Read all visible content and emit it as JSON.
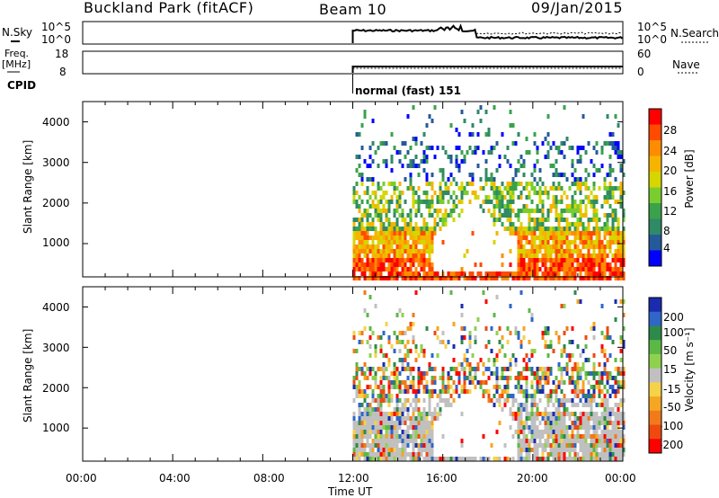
{
  "header": {
    "site": "Buckland Park (fitACF)",
    "beam": "Beam 10",
    "date": "09/Jan/2015"
  },
  "top_panels": {
    "nsky_label": "N.Sky",
    "nsearch_label": "N.Search",
    "left_ticks": [
      "10^5",
      "10^0"
    ],
    "right_ticks": [
      "10^5",
      "10^0"
    ],
    "freq_label_line1": "Freq.",
    "freq_label_line2": "[MHz]",
    "freq_ticks": [
      "18",
      "8"
    ],
    "nave_label": "Nave",
    "nave_ticks": [
      "60",
      "0"
    ],
    "cpid_label": "CPID",
    "cpid_text": "normal (fast) 151"
  },
  "chart_data": [
    {
      "type": "heatmap",
      "title": "",
      "ylabel": "Slant Range [km]",
      "xlabel": "",
      "y_ticks": [
        "4000",
        "3000",
        "2000",
        "1000"
      ],
      "colorbar_label": "Power [dB]",
      "colorbar_ticks": [
        "28",
        "24",
        "20",
        "16",
        "12",
        "8",
        "4"
      ],
      "colorbar_colors": [
        "#ff0000",
        "#ff4a00",
        "#ff8c00",
        "#f6b400",
        "#d6d600",
        "#7acd2f",
        "#3aa24a",
        "#2f8a66",
        "#255a9a",
        "#0000ff"
      ],
      "ylim": [
        180,
        4500
      ],
      "xlim_hours": [
        0,
        24
      ],
      "data_start_hour": 12
    },
    {
      "type": "heatmap",
      "title": "",
      "ylabel": "Slant Range [km]",
      "xlabel": "Time UT",
      "y_ticks": [
        "4000",
        "3000",
        "2000",
        "1000"
      ],
      "x_ticks": [
        "00:00",
        "04:00",
        "08:00",
        "12:00",
        "16:00",
        "20:00",
        "00:00"
      ],
      "colorbar_label": "Velocity [m s⁻¹]",
      "colorbar_ticks": [
        "200",
        "100",
        "50",
        "15",
        "-15",
        "-50",
        "-100",
        "-200"
      ],
      "colorbar_colors": [
        "#1a2bb0",
        "#2f66c8",
        "#2d8a4a",
        "#5cb845",
        "#8fd14f",
        "#c0c0c0",
        "#f5d24a",
        "#f5a623",
        "#f27a1a",
        "#ee4a10",
        "#ff0000"
      ],
      "ylim": [
        180,
        4500
      ],
      "xlim_hours": [
        0,
        24
      ],
      "data_start_hour": 12
    }
  ]
}
